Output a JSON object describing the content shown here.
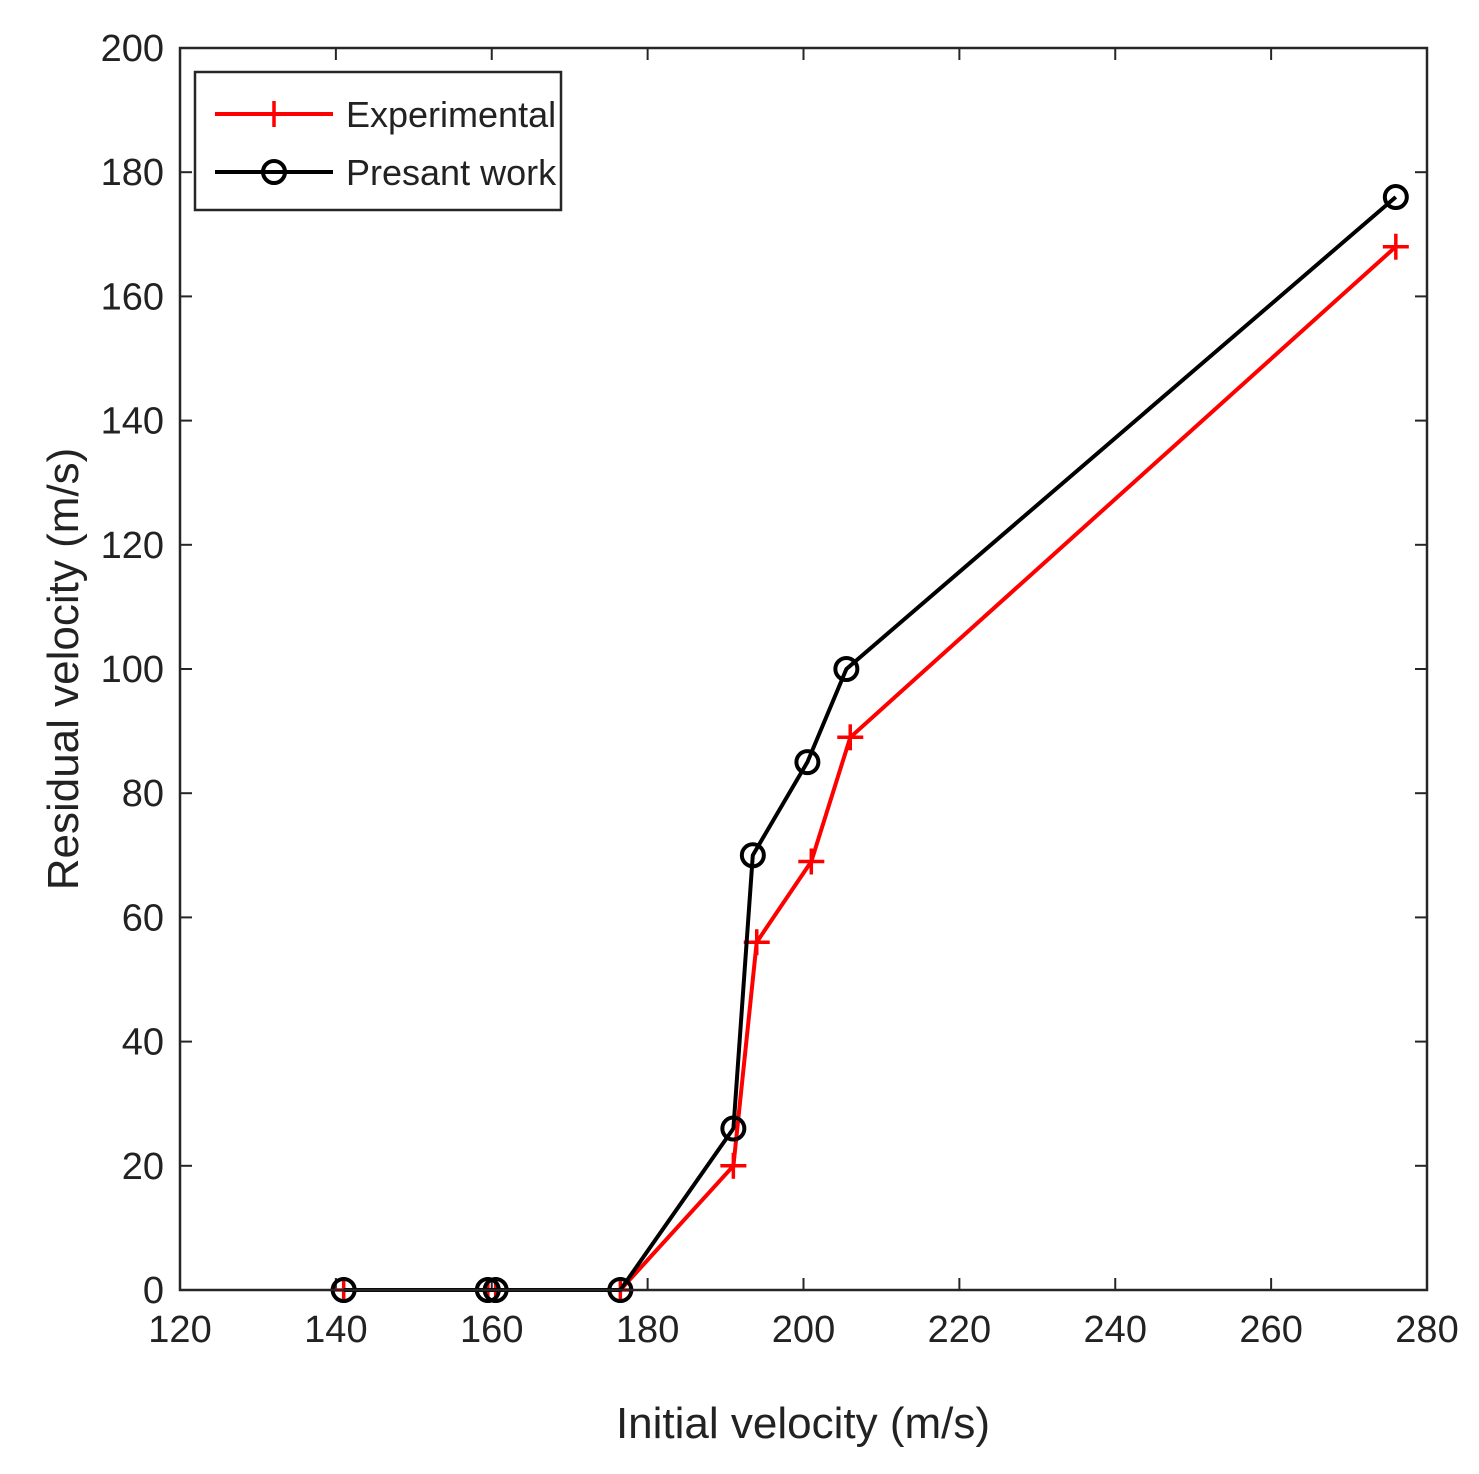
{
  "chart_data": {
    "type": "line",
    "title": "",
    "xlabel": "Initial velocity (m/s)",
    "ylabel": "Residual velocity (m/s)",
    "xlim": [
      120,
      280
    ],
    "ylim": [
      0,
      200
    ],
    "xticks": [
      120,
      140,
      160,
      180,
      200,
      220,
      240,
      260,
      280
    ],
    "yticks": [
      0,
      20,
      40,
      60,
      80,
      100,
      120,
      140,
      160,
      180,
      200
    ],
    "grid": false,
    "legend_position": "top-left",
    "series": [
      {
        "name": "Experimental",
        "color": "#ff0000",
        "marker": "plus",
        "x": [
          141,
          159.5,
          160.5,
          176.5,
          191,
          194,
          201,
          206,
          276
        ],
        "y": [
          0,
          0,
          0,
          0,
          20,
          56,
          69,
          89,
          168
        ]
      },
      {
        "name": "Presant work",
        "color": "#000000",
        "marker": "circle",
        "x": [
          141,
          159.5,
          160.5,
          176.5,
          191,
          193.5,
          200.5,
          205.5,
          276
        ],
        "y": [
          0,
          0,
          0,
          0,
          26,
          70,
          85,
          100,
          176
        ]
      }
    ]
  }
}
